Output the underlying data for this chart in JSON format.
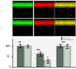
{
  "rows": 2,
  "cols": 3,
  "row_labels": [
    "1 min\n20 lux",
    "1 min\n150 lux"
  ],
  "bar_groups": 3,
  "bar_dark": [
    100,
    62,
    100
  ],
  "bar_light": [
    98,
    28,
    98
  ],
  "bar_dark_color": "#607060",
  "bar_light_color": "#c8d4c8",
  "sig_group1_top": "***",
  "sig_group2_top": "***",
  "sig_group2_sub": "*",
  "sig_group3_top": "***",
  "ylim": [
    0,
    135
  ],
  "yticks": [
    0,
    50,
    100
  ],
  "legend_dark": "Anti-RGS9",
  "legend_light": "Anti-Transducin",
  "bar_width": 0.32,
  "error_dark": [
    7,
    9,
    7
  ],
  "error_light": [
    7,
    7,
    9
  ],
  "background_color": "#f4f4f4",
  "img_bg": "#000000",
  "band_color_green": [
    0.1,
    0.85,
    0.1
  ],
  "band_color_red": [
    0.9,
    0.1,
    0.0
  ],
  "band_color_merge_r": [
    0.85,
    0.8,
    0.0
  ],
  "divider_color": "#888888",
  "label_color": "#cccccc",
  "label_fontsize": 2.5
}
